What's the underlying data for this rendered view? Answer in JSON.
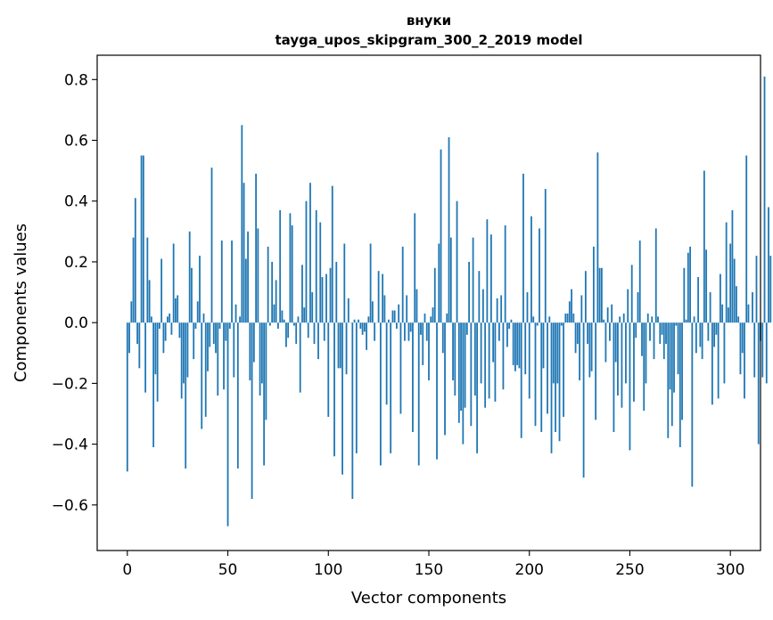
{
  "chart_data": {
    "type": "bar",
    "title": "внуки",
    "subtitle": "tayga_upos_skipgram_300_2_2019 model",
    "xlabel": "Vector components",
    "ylabel": "Components values",
    "xlim": [
      -15,
      315
    ],
    "ylim": [
      -0.75,
      0.88
    ],
    "xticks": [
      0,
      50,
      100,
      150,
      200,
      250,
      300
    ],
    "yticks": [
      -0.6,
      -0.4,
      -0.2,
      0.0,
      0.2,
      0.4,
      0.6,
      0.8
    ],
    "ytick_labels": [
      "−0.6",
      "−0.4",
      "−0.2",
      "0.0",
      "0.2",
      "0.4",
      "0.6",
      "0.8"
    ],
    "grid": false,
    "color": "#1f77b4",
    "values": [
      -0.49,
      -0.1,
      0.07,
      0.28,
      0.41,
      -0.07,
      -0.15,
      0.55,
      0.55,
      -0.23,
      0.28,
      0.14,
      0.02,
      -0.41,
      -0.17,
      -0.26,
      -0.02,
      0.21,
      -0.1,
      -0.06,
      0.02,
      0.03,
      -0.04,
      0.26,
      0.08,
      0.09,
      -0.05,
      -0.25,
      -0.2,
      -0.48,
      -0.18,
      0.3,
      0.18,
      -0.12,
      -0.02,
      0.07,
      0.22,
      -0.35,
      0.03,
      -0.31,
      -0.16,
      -0.08,
      0.51,
      -0.07,
      -0.1,
      -0.24,
      -0.02,
      0.27,
      -0.22,
      -0.06,
      -0.67,
      -0.02,
      0.27,
      -0.18,
      0.06,
      -0.48,
      0.02,
      0.65,
      0.46,
      0.21,
      0.3,
      -0.19,
      -0.58,
      -0.13,
      0.49,
      0.31,
      -0.24,
      -0.2,
      -0.47,
      -0.32,
      0.25,
      -0.01,
      0.2,
      0.06,
      0.14,
      -0.02,
      0.37,
      0.04,
      0.01,
      -0.08,
      -0.05,
      0.36,
      0.32,
      -0.01,
      -0.07,
      0.02,
      -0.23,
      0.19,
      0.05,
      0.4,
      -0.05,
      0.46,
      0.1,
      -0.07,
      0.37,
      -0.12,
      0.33,
      0.15,
      -0.06,
      0.16,
      -0.31,
      0.18,
      0.45,
      -0.44,
      0.2,
      -0.15,
      -0.15,
      -0.5,
      0.26,
      -0.17,
      0.08,
      0.0,
      -0.58,
      0.01,
      -0.43,
      0.01,
      -0.02,
      -0.04,
      -0.03,
      -0.09,
      0.02,
      0.26,
      0.07,
      -0.06,
      0.0,
      0.17,
      -0.47,
      0.16,
      0.09,
      -0.27,
      0.01,
      -0.43,
      0.04,
      0.04,
      -0.02,
      0.06,
      -0.3,
      0.25,
      -0.06,
      0.09,
      -0.06,
      -0.03,
      -0.36,
      0.36,
      0.11,
      -0.47,
      -0.04,
      -0.14,
      0.03,
      -0.06,
      -0.19,
      0.02,
      0.05,
      0.18,
      -0.45,
      0.26,
      0.57,
      -0.1,
      -0.37,
      0.03,
      0.61,
      0.28,
      -0.19,
      -0.24,
      0.4,
      -0.33,
      -0.29,
      -0.4,
      -0.28,
      -0.04,
      0.2,
      -0.34,
      0.28,
      -0.24,
      -0.43,
      0.17,
      -0.2,
      0.11,
      -0.28,
      0.34,
      -0.25,
      0.29,
      -0.13,
      -0.26,
      0.08,
      -0.06,
      0.09,
      -0.22,
      0.32,
      -0.08,
      -0.02,
      0.01,
      -0.14,
      -0.16,
      -0.14,
      -0.15,
      -0.38,
      0.49,
      -0.17,
      0.1,
      -0.25,
      0.35,
      0.02,
      -0.34,
      -0.01,
      0.31,
      -0.36,
      -0.15,
      0.44,
      -0.3,
      0.02,
      -0.43,
      -0.2,
      -0.36,
      -0.2,
      -0.39,
      -0.01,
      -0.31,
      0.03,
      0.03,
      0.07,
      0.11,
      0.03,
      -0.1,
      -0.07,
      -0.19,
      0.09,
      -0.51,
      0.17,
      -0.07,
      -0.18,
      -0.16,
      0.25,
      -0.32,
      0.56,
      0.18,
      0.18,
      0.01,
      -0.13,
      0.05,
      -0.06,
      0.06,
      -0.36,
      -0.13,
      -0.24,
      0.02,
      -0.28,
      0.03,
      -0.2,
      0.11,
      -0.42,
      0.19,
      -0.26,
      -0.05,
      0.1,
      0.27,
      -0.11,
      -0.29,
      -0.2,
      0.03,
      -0.06,
      0.02,
      -0.12,
      0.31,
      0.02,
      -0.07,
      -0.04,
      -0.12,
      -0.07,
      -0.38,
      -0.22,
      -0.34,
      -0.23,
      -0.01,
      -0.17,
      -0.41,
      -0.32,
      0.18,
      0.01,
      0.23,
      0.25,
      -0.54,
      0.02,
      -0.1,
      0.15,
      -0.08,
      -0.12,
      0.5,
      0.24,
      -0.06,
      0.1,
      -0.27,
      -0.08,
      -0.04,
      -0.25,
      0.16,
      0.06,
      -0.2,
      0.33,
      0.05,
      0.26,
      0.37,
      0.21,
      0.12,
      0.02,
      -0.17,
      -0.1,
      -0.25,
      0.55,
      0.06,
      0.0,
      0.1,
      -0.18,
      0.22,
      -0.4,
      -0.06,
      -0.18,
      0.81,
      -0.2,
      0.38,
      0.22
    ]
  }
}
